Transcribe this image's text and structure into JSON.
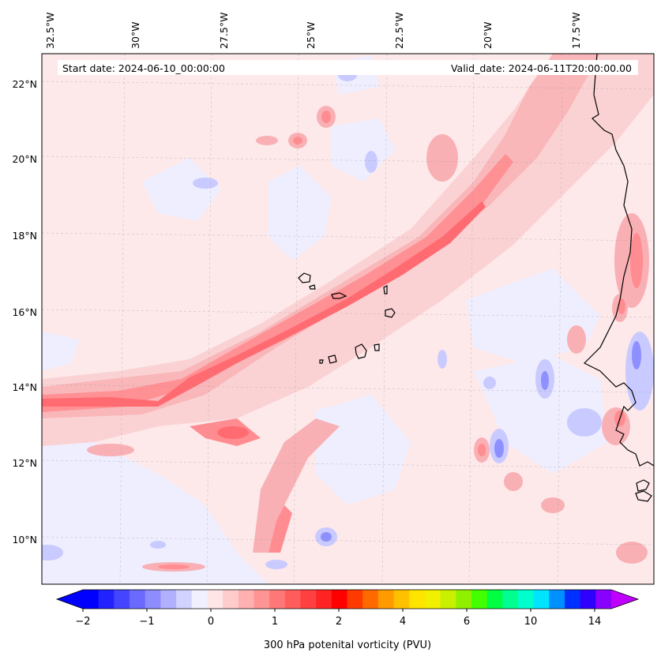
{
  "map": {
    "start_label": "Start date: 2024-06-10_00:00:00",
    "valid_label": "Valid_date: 2024-06-11T20:00:00.00",
    "lon_labels": [
      "32.5°W",
      "30°W",
      "27.5°W",
      "25°W",
      "22.5°W",
      "20°W",
      "17.5°W"
    ],
    "lat_labels": [
      "22°N",
      "20°N",
      "18°N",
      "16°N",
      "14°N",
      "12°N",
      "10°N"
    ],
    "background_color": "#fde9ea",
    "jet_colors": [
      "#fbd2d4",
      "#f9b0b4",
      "#ff8c90",
      "#ff6b71"
    ],
    "negative_colors": [
      "#eeeeff",
      "#cfd0ff",
      "#b0b2ff",
      "#8f90ff"
    ]
  },
  "colorbar": {
    "label": "300 hPa potenital vorticity (PVU)",
    "tick_labels": [
      "−2",
      "−1",
      "0",
      "1",
      "2",
      "4",
      "6",
      "10",
      "14"
    ],
    "colors": [
      "#0000ff",
      "#2222ff",
      "#4545ff",
      "#6a6aff",
      "#8d8dff",
      "#b0b0ff",
      "#d2d2ff",
      "#f0f0ff",
      "#ffe6e6",
      "#ffcccc",
      "#ffb0b0",
      "#ff9494",
      "#ff7878",
      "#ff5c5c",
      "#ff4040",
      "#ff2424",
      "#ff0000",
      "#ff3a00",
      "#ff6a00",
      "#ff9a00",
      "#ffc000",
      "#ffe400",
      "#f0f000",
      "#c8f000",
      "#90f000",
      "#44ff00",
      "#00ff40",
      "#00ff90",
      "#00ffcc",
      "#00e4ff",
      "#0090ff",
      "#0030ff",
      "#3000ff",
      "#8a00ff"
    ],
    "min_extend_color": "#0000ff",
    "max_extend_color": "#c000ff"
  }
}
